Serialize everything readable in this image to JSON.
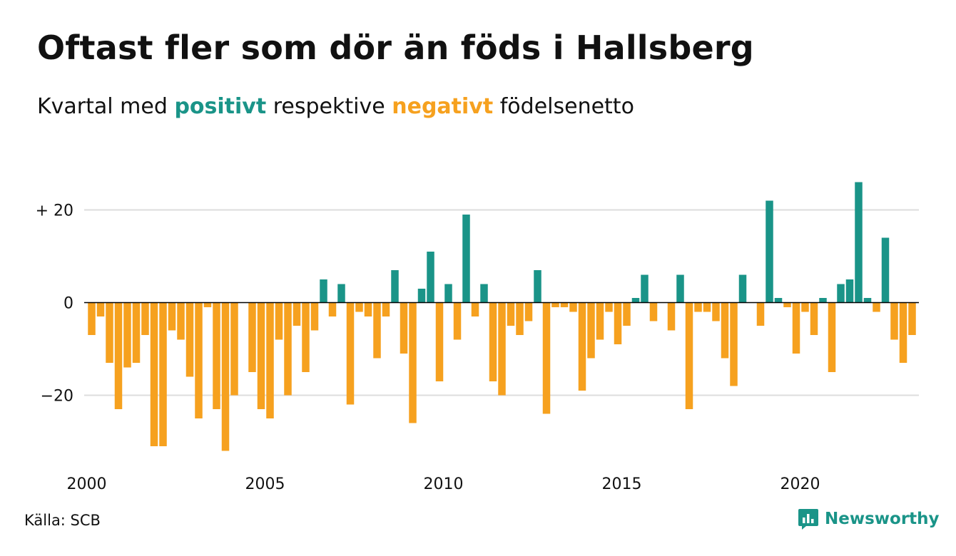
{
  "title": "Oftast fler som dör än föds i Hallsberg",
  "subtitle": {
    "prefix": "Kvartal med",
    "positive_word": "positivt",
    "middle": "respektive",
    "negative_word": "negativt",
    "suffix": "födelsenetto"
  },
  "colors": {
    "positive": "#1a9488",
    "negative": "#f6a11f",
    "grid": "#dddddd",
    "zero_line": "#000000",
    "text": "#111111"
  },
  "source": "Källa: SCB",
  "brand": {
    "name": "Newsworthy",
    "icon": "newsworthy-logo-icon"
  },
  "chart_data": {
    "type": "bar",
    "x_start_year": 2000,
    "quarters_per_year": 4,
    "x_tick_labels": [
      "2000",
      "2005",
      "2010",
      "2015",
      "2020"
    ],
    "x_tick_values": [
      2000,
      2005,
      2010,
      2015,
      2020
    ],
    "y_tick_labels": [
      "+ 20",
      "0",
      "−20"
    ],
    "y_tick_values": [
      20,
      0,
      -20
    ],
    "ylim": [
      -34,
      28
    ],
    "grid": true,
    "series": [
      {
        "values": [
          -7,
          -3,
          -13,
          -23,
          -14,
          -13,
          -7,
          -31,
          -31,
          -6,
          -8,
          -16,
          -25,
          -1,
          -23,
          -32,
          -20,
          0,
          -15,
          -23,
          -25,
          -8,
          -20,
          -5,
          -15,
          -6,
          5,
          -3,
          4,
          -22,
          -2,
          -3,
          -12,
          -3,
          7,
          -11,
          -26,
          3,
          11,
          -17,
          4,
          -8,
          19,
          -3,
          4,
          -17,
          -20,
          -5,
          -7,
          -4,
          7,
          -24,
          -1,
          -1,
          -2,
          -19,
          -12,
          -8,
          -2,
          -9,
          -5,
          1,
          6,
          -4,
          0,
          -6,
          6,
          -23,
          -2,
          -2,
          -4,
          -12,
          -18,
          6,
          0,
          -5,
          22,
          1,
          -1,
          -11,
          -2,
          -7,
          1,
          -15,
          4,
          5,
          26,
          1,
          -2,
          14,
          -8,
          -13,
          -7
        ]
      }
    ]
  }
}
